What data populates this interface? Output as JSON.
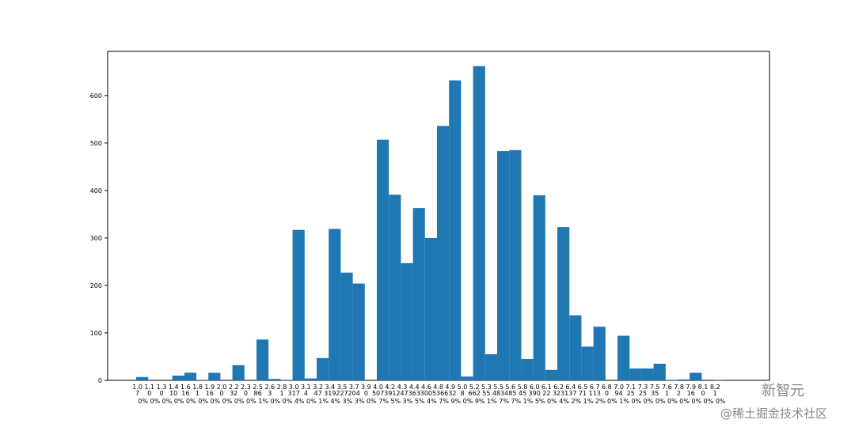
{
  "chart_data": {
    "type": "bar",
    "color": "#1f77b4",
    "categories": [
      "1.0",
      "1.1",
      "1.3",
      "1.4",
      "1.6",
      "1.8",
      "1.9",
      "2.0",
      "2.2",
      "2.3",
      "2.5",
      "2.6",
      "2.8",
      "3.0",
      "3.1",
      "3.2",
      "3.4",
      "3.5",
      "3.7",
      "3.9",
      "4.0",
      "4.2",
      "4.3",
      "4.4",
      "4.6",
      "4.8",
      "4.9",
      "5.0",
      "5.2",
      "5.3",
      "5.5",
      "5.6",
      "5.8",
      "6.0",
      "6.1",
      "6.2",
      "6.4",
      "6.5",
      "6.7",
      "6.8",
      "7.0",
      "7.1",
      "7.3",
      "7.5",
      "7.6",
      "7.8",
      "7.9",
      "8.1",
      "8.2"
    ],
    "values": [
      7,
      0,
      0,
      10,
      16,
      1,
      16,
      0,
      32,
      0,
      86,
      3,
      1,
      317,
      4,
      47,
      319,
      227,
      204,
      0,
      507,
      391,
      247,
      363,
      300,
      536,
      632,
      8,
      662,
      55,
      483,
      485,
      45,
      390,
      22,
      323,
      137,
      71,
      113,
      0,
      94,
      25,
      25,
      35,
      1,
      2,
      16,
      0,
      1
    ],
    "percent_labels": [
      "0%",
      "0%",
      "0%",
      "0%",
      "0%",
      "0%",
      "0%",
      "0%",
      "0%",
      "0%",
      "1%",
      "0%",
      "0%",
      "4%",
      "0%",
      "1%",
      "4%",
      "3%",
      "3%",
      "0%",
      "7%",
      "5%",
      "3%",
      "5%",
      "4%",
      "7%",
      "9%",
      "0%",
      "9%",
      "1%",
      "7%",
      "7%",
      "1%",
      "5%",
      "0%",
      "4%",
      "2%",
      "1%",
      "2%",
      "0%",
      "1%",
      "0%",
      "0%",
      "0%",
      "0%",
      "0%",
      "0%",
      "0%",
      "0%"
    ],
    "ylim": [
      0,
      693
    ],
    "yticks": [
      0,
      100,
      200,
      300,
      400,
      500,
      600
    ]
  },
  "watermarks": [
    "新智元",
    "@稀土掘金技术社区"
  ]
}
